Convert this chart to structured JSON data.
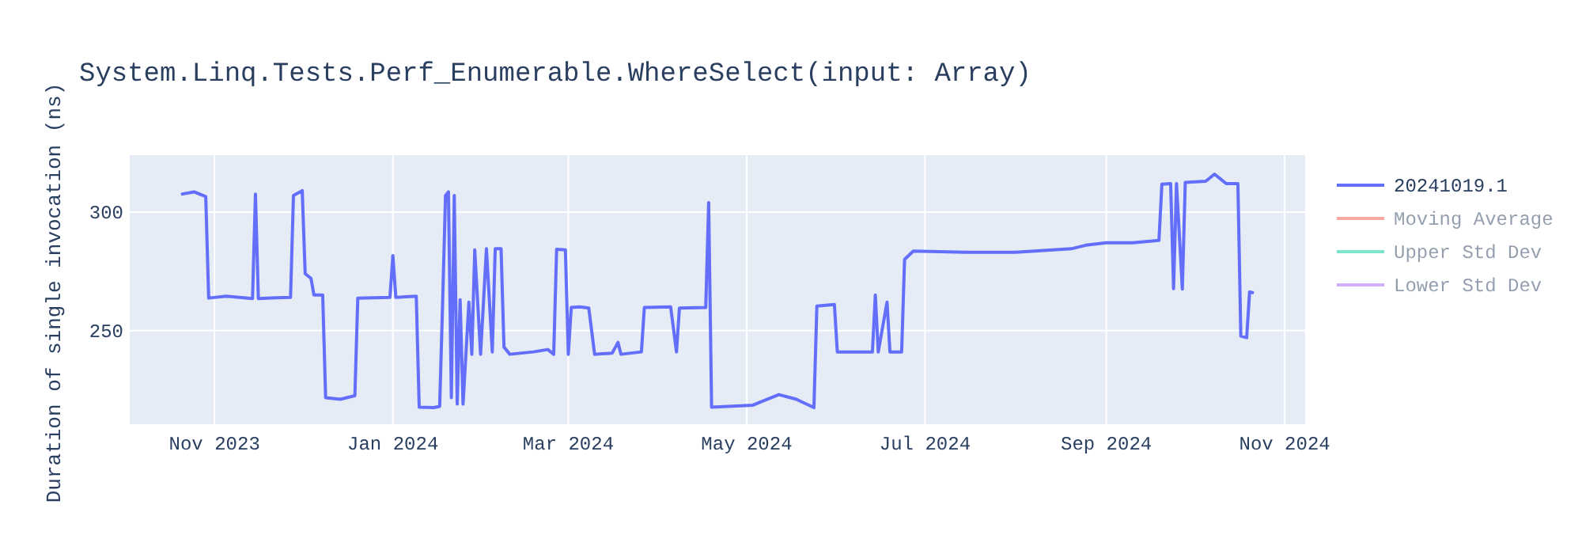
{
  "chart_data": {
    "type": "line",
    "title": "System.Linq.Tests.Perf_Enumerable.WhereSelect(input: Array)",
    "ylabel": "Duration of single invocation (ns)",
    "xlim": [
      "2023-10-03",
      "2024-11-08"
    ],
    "xticks": [
      {
        "value": "2023-11-01",
        "label": "Nov 2023"
      },
      {
        "value": "2024-01-01",
        "label": "Jan 2024"
      },
      {
        "value": "2024-03-01",
        "label": "Mar 2024"
      },
      {
        "value": "2024-05-01",
        "label": "May 2024"
      },
      {
        "value": "2024-07-01",
        "label": "Jul 2024"
      },
      {
        "value": "2024-09-01",
        "label": "Sep 2024"
      },
      {
        "value": "2024-11-01",
        "label": "Nov 2024"
      }
    ],
    "ylim": [
      210.5,
      324
    ],
    "yticks": [
      250,
      300
    ],
    "grid": true,
    "legend": "top right",
    "marker": "none",
    "line_style": "solid",
    "x": [
      "2023-10-21",
      "2023-10-25",
      "2023-10-29",
      "2023-10-30",
      "2023-11-05",
      "2023-11-14",
      "2023-11-15",
      "2023-11-16",
      "2023-11-22",
      "2023-11-27",
      "2023-11-28",
      "2023-12-01",
      "2023-12-02",
      "2023-12-04",
      "2023-12-05",
      "2023-12-08",
      "2023-12-09",
      "2023-12-14",
      "2023-12-19",
      "2023-12-20",
      "2023-12-31",
      "2024-01-01",
      "2024-01-02",
      "2024-01-09",
      "2024-01-10",
      "2024-01-15",
      "2024-01-17",
      "2024-01-18",
      "2024-01-19",
      "2024-01-20",
      "2024-01-21",
      "2024-01-22",
      "2024-01-23",
      "2024-01-24",
      "2024-01-25",
      "2024-01-27",
      "2024-01-28",
      "2024-01-29",
      "2024-01-31",
      "2024-02-02",
      "2024-02-04",
      "2024-02-05",
      "2024-02-07",
      "2024-02-08",
      "2024-02-10",
      "2024-02-18",
      "2024-02-23",
      "2024-02-25",
      "2024-02-26",
      "2024-02-29",
      "2024-03-01",
      "2024-03-02",
      "2024-03-05",
      "2024-03-08",
      "2024-03-10",
      "2024-03-16",
      "2024-03-18",
      "2024-03-19",
      "2024-03-26",
      "2024-03-27",
      "2024-04-05",
      "2024-04-07",
      "2024-04-08",
      "2024-04-17",
      "2024-04-18",
      "2024-04-19",
      "2024-05-03",
      "2024-05-12",
      "2024-05-18",
      "2024-05-24",
      "2024-05-25",
      "2024-05-31",
      "2024-06-01",
      "2024-06-13",
      "2024-06-14",
      "2024-06-15",
      "2024-06-18",
      "2024-06-19",
      "2024-06-23",
      "2024-06-24",
      "2024-06-27",
      "2024-07-15",
      "2024-08-01",
      "2024-08-20",
      "2024-08-25",
      "2024-09-01",
      "2024-09-10",
      "2024-09-19",
      "2024-09-20",
      "2024-09-23",
      "2024-09-24",
      "2024-09-25",
      "2024-09-27",
      "2024-09-28",
      "2024-10-05",
      "2024-10-08",
      "2024-10-12",
      "2024-10-16",
      "2024-10-17",
      "2024-10-19",
      "2024-10-20",
      "2024-10-21"
    ],
    "series": [
      {
        "name": "20241019.1",
        "color": "#636efa",
        "values": [
          307.6,
          308.5,
          306.5,
          263.7,
          264.5,
          263.5,
          307.6,
          263.5,
          263.8,
          264,
          307,
          309,
          274,
          272,
          265,
          265,
          221.7,
          221,
          222.5,
          263.7,
          264,
          281.6,
          264,
          264.5,
          217.7,
          217.5,
          218,
          261,
          307,
          308.5,
          221.7,
          307,
          219,
          263,
          219,
          262,
          240,
          284,
          240,
          284.5,
          241,
          284.5,
          284.5,
          243,
          240,
          241,
          242,
          240,
          284.3,
          284,
          240,
          259.7,
          260,
          259.5,
          240,
          240.5,
          245,
          240,
          241,
          259.7,
          260,
          241,
          259.5,
          259.7,
          304,
          217.7,
          218.5,
          223,
          221,
          217.5,
          260.3,
          261,
          241,
          241,
          265,
          241,
          262,
          241,
          241,
          280,
          283.5,
          283,
          283,
          284.5,
          286,
          287,
          287,
          288,
          311.7,
          312,
          267.7,
          312,
          267.5,
          312.5,
          313,
          316,
          312,
          312,
          247.7,
          247,
          266.3,
          266
        ]
      },
      {
        "name": "Moving Average",
        "color": "#ef553b",
        "values": [
          null,
          null,
          null,
          null,
          null,
          null,
          null,
          null,
          null,
          null,
          null,
          null,
          null,
          null,
          null,
          null,
          null,
          null,
          null,
          null,
          null,
          null,
          null,
          null,
          null,
          null,
          null,
          null,
          null,
          null,
          null,
          null,
          null,
          null,
          null,
          null,
          null,
          null,
          null,
          null,
          null,
          null,
          null,
          null,
          null,
          null,
          null,
          null,
          null,
          null,
          null,
          null,
          null,
          null,
          null,
          null,
          null,
          null,
          null,
          null,
          null,
          null,
          null,
          null,
          null,
          null,
          null,
          null,
          null,
          null,
          null,
          null,
          null,
          null,
          null,
          null,
          null,
          null,
          null,
          null,
          null,
          null,
          null,
          null,
          null,
          null,
          null,
          null,
          null,
          null,
          null,
          null,
          null,
          null,
          null,
          null,
          null,
          null,
          null,
          null,
          null,
          null
        ]
      },
      {
        "name": "Upper Std Dev",
        "color": "#00cc96",
        "values": [
          null,
          null,
          null,
          null,
          null,
          null,
          null,
          null,
          null,
          null,
          null,
          null,
          null,
          null,
          null,
          null,
          null,
          null,
          null,
          null,
          null,
          null,
          null,
          null,
          null,
          null,
          null,
          null,
          null,
          null,
          null,
          null,
          null,
          null,
          null,
          null,
          null,
          null,
          null,
          null,
          null,
          null,
          null,
          null,
          null,
          null,
          null,
          null,
          null,
          null,
          null,
          null,
          null,
          null,
          null,
          null,
          null,
          null,
          null,
          null,
          null,
          null,
          null,
          null,
          null,
          null,
          null,
          null,
          null,
          null,
          null,
          null,
          null,
          null,
          null,
          null,
          null,
          null,
          null,
          null,
          null,
          null,
          null,
          null,
          null,
          null,
          null,
          null,
          null,
          null,
          null,
          null,
          null,
          null,
          null,
          null,
          null,
          null,
          null,
          null,
          null,
          null
        ]
      },
      {
        "name": "Lower Std Dev",
        "color": "#ab63fa",
        "values": [
          null,
          null,
          null,
          null,
          null,
          null,
          null,
          null,
          null,
          null,
          null,
          null,
          null,
          null,
          null,
          null,
          null,
          null,
          null,
          null,
          null,
          null,
          null,
          null,
          null,
          null,
          null,
          null,
          null,
          null,
          null,
          null,
          null,
          null,
          null,
          null,
          null,
          null,
          null,
          null,
          null,
          null,
          null,
          null,
          null,
          null,
          null,
          null,
          null,
          null,
          null,
          null,
          null,
          null,
          null,
          null,
          null,
          null,
          null,
          null,
          null,
          null,
          null,
          null,
          null,
          null,
          null,
          null,
          null,
          null,
          null,
          null,
          null,
          null,
          null,
          null,
          null,
          null,
          null,
          null,
          null,
          null,
          null,
          null,
          null,
          null,
          null,
          null,
          null,
          null,
          null,
          null,
          null,
          null,
          null,
          null,
          null,
          null,
          null,
          null,
          null,
          null
        ]
      }
    ]
  }
}
